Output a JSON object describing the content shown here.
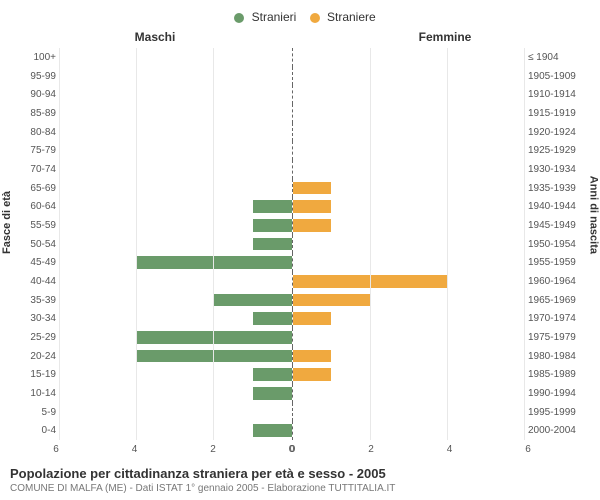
{
  "legend": {
    "items": [
      {
        "label": "Stranieri",
        "color": "#6a9b6a"
      },
      {
        "label": "Straniere",
        "color": "#f0a93f"
      }
    ]
  },
  "panel_titles": {
    "left": "Maschi",
    "right": "Femmine"
  },
  "y_axis": {
    "title_left": "Fasce di età",
    "title_right": "Anni di nascita",
    "label_fontsize": 10
  },
  "x_axis": {
    "max": 6,
    "ticks": [
      0,
      2,
      4,
      6
    ],
    "label_fontsize": 10,
    "grid_color": "#e8e8e8"
  },
  "style": {
    "background_color": "#ffffff",
    "male_color": "#6a9b6a",
    "female_color": "#f0a93f",
    "center_line": {
      "color": "#666666",
      "dash": "3,3"
    },
    "bar_height_pct": 68
  },
  "rows": [
    {
      "age": "100+",
      "birth": "≤ 1904",
      "m": 0,
      "f": 0
    },
    {
      "age": "95-99",
      "birth": "1905-1909",
      "m": 0,
      "f": 0
    },
    {
      "age": "90-94",
      "birth": "1910-1914",
      "m": 0,
      "f": 0
    },
    {
      "age": "85-89",
      "birth": "1915-1919",
      "m": 0,
      "f": 0
    },
    {
      "age": "80-84",
      "birth": "1920-1924",
      "m": 0,
      "f": 0
    },
    {
      "age": "75-79",
      "birth": "1925-1929",
      "m": 0,
      "f": 0
    },
    {
      "age": "70-74",
      "birth": "1930-1934",
      "m": 0,
      "f": 0
    },
    {
      "age": "65-69",
      "birth": "1935-1939",
      "m": 0,
      "f": 1
    },
    {
      "age": "60-64",
      "birth": "1940-1944",
      "m": 1,
      "f": 1
    },
    {
      "age": "55-59",
      "birth": "1945-1949",
      "m": 1,
      "f": 1
    },
    {
      "age": "50-54",
      "birth": "1950-1954",
      "m": 1,
      "f": 0
    },
    {
      "age": "45-49",
      "birth": "1955-1959",
      "m": 4,
      "f": 0
    },
    {
      "age": "40-44",
      "birth": "1960-1964",
      "m": 0,
      "f": 4
    },
    {
      "age": "35-39",
      "birth": "1965-1969",
      "m": 2,
      "f": 2
    },
    {
      "age": "30-34",
      "birth": "1970-1974",
      "m": 1,
      "f": 1
    },
    {
      "age": "25-29",
      "birth": "1975-1979",
      "m": 4,
      "f": 0
    },
    {
      "age": "20-24",
      "birth": "1980-1984",
      "m": 4,
      "f": 1
    },
    {
      "age": "15-19",
      "birth": "1985-1989",
      "m": 1,
      "f": 1
    },
    {
      "age": "10-14",
      "birth": "1990-1994",
      "m": 1,
      "f": 0
    },
    {
      "age": "5-9",
      "birth": "1995-1999",
      "m": 0,
      "f": 0
    },
    {
      "age": "0-4",
      "birth": "2000-2004",
      "m": 1,
      "f": 0
    }
  ],
  "footer": {
    "title": "Popolazione per cittadinanza straniera per età e sesso - 2005",
    "subtitle": "COMUNE DI MALFA (ME) - Dati ISTAT 1° gennaio 2005 - Elaborazione TUTTITALIA.IT"
  }
}
